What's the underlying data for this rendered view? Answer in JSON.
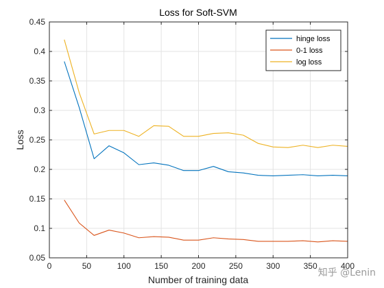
{
  "chart_data": {
    "type": "line",
    "title": "Loss for Soft-SVM",
    "xlabel": "Number of training data",
    "ylabel": "Loss",
    "xlim": [
      0,
      400
    ],
    "ylim": [
      0.05,
      0.45
    ],
    "xticks": [
      "0",
      "50",
      "100",
      "150",
      "200",
      "250",
      "300",
      "350",
      "400"
    ],
    "yticks": [
      "0.05",
      "0.1",
      "0.15",
      "0.2",
      "0.25",
      "0.3",
      "0.35",
      "0.4",
      "0.45"
    ],
    "xtick_values": [
      0,
      50,
      100,
      150,
      200,
      250,
      300,
      350,
      400
    ],
    "ytick_values": [
      0.05,
      0.1,
      0.15,
      0.2,
      0.25,
      0.3,
      0.35,
      0.4,
      0.45
    ],
    "grid": true,
    "legend_position": "top-right",
    "x": [
      20,
      40,
      60,
      80,
      100,
      120,
      140,
      160,
      180,
      200,
      220,
      240,
      260,
      280,
      300,
      320,
      340,
      360,
      380,
      400
    ],
    "series": [
      {
        "name": "hinge loss",
        "color": "#0072BD",
        "values": [
          0.383,
          0.305,
          0.218,
          0.24,
          0.228,
          0.208,
          0.211,
          0.207,
          0.198,
          0.198,
          0.205,
          0.196,
          0.194,
          0.19,
          0.189,
          0.19,
          0.191,
          0.189,
          0.19,
          0.189
        ]
      },
      {
        "name": "0-1 loss",
        "color": "#D95319",
        "values": [
          0.148,
          0.109,
          0.088,
          0.097,
          0.092,
          0.084,
          0.086,
          0.085,
          0.08,
          0.08,
          0.084,
          0.082,
          0.081,
          0.078,
          0.078,
          0.078,
          0.079,
          0.077,
          0.079,
          0.078
        ]
      },
      {
        "name": "log loss",
        "color": "#EDB120",
        "values": [
          0.42,
          0.33,
          0.26,
          0.266,
          0.266,
          0.256,
          0.274,
          0.273,
          0.256,
          0.256,
          0.261,
          0.262,
          0.258,
          0.244,
          0.238,
          0.237,
          0.241,
          0.237,
          0.241,
          0.239
        ]
      }
    ]
  },
  "watermark": {
    "text": "知乎 @Lenin"
  }
}
